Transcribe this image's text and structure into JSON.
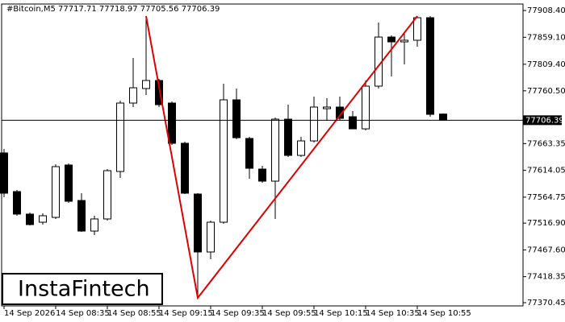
{
  "chart_data": {
    "type": "candlestick",
    "title": "#Bitcoin,M5  77717.71 77718.97 77705.56 77706.39",
    "categories": [
      "14 Sep 2026",
      null,
      null,
      null,
      "14 Sep 08:35",
      null,
      null,
      null,
      "14 Sep 08:55",
      null,
      null,
      null,
      "14 Sep 09:15",
      null,
      null,
      null,
      "14 Sep 09:35",
      null,
      null,
      null,
      "14 Sep 09:55",
      null,
      null,
      null,
      "14 Sep 10:15",
      null,
      null,
      null,
      "14 Sep 10:35",
      null,
      null,
      null,
      "14 Sep 10:55",
      null,
      null
    ],
    "open": [
      77646.1,
      77575.0,
      77533.5,
      77518.6,
      77527.5,
      77623.9,
      77558.6,
      77502.3,
      77524.6,
      77612.0,
      77737.97,
      77764.7,
      77779.5,
      77737.97,
      77663.9,
      77570.5,
      77463.8,
      77518.6,
      77743.9,
      77672.8,
      77616.4,
      77594.2,
      77708.3,
      77641.6,
      77668.3,
      77727.6,
      77730.6,
      77712.8,
      77690.5,
      77769.1,
      77859.5,
      77850.6,
      77853.6,
      77895.1,
      77717.71
    ],
    "high": [
      77653.5,
      77577.9,
      77536.4,
      77534.9,
      77625.3,
      77626.8,
      77572.0,
      77530.5,
      77616.4,
      77742.4,
      77821.0,
      77898.0,
      77782.4,
      77740.9,
      77666.8,
      77572.0,
      77521.6,
      77773.5,
      77764.7,
      77675.7,
      77622.4,
      77711.3,
      77735.0,
      77675.7,
      77749.8,
      77746.9,
      77749.8,
      77723.2,
      77779.5,
      77886.2,
      77862.5,
      77865.4,
      77898.0,
      77898.0,
      77718.97
    ],
    "low": [
      77564.6,
      77530.5,
      77512.7,
      77514.2,
      77524.6,
      77554.2,
      77500.8,
      77494.9,
      77521.6,
      77600.1,
      77730.6,
      77752.8,
      77730.6,
      77660.9,
      77570.5,
      77379.3,
      77450.5,
      77515.7,
      77671.3,
      77598.7,
      77591.3,
      77524.6,
      77638.7,
      77638.7,
      77665.4,
      77705.4,
      77706.8,
      77690.5,
      77687.6,
      77764.7,
      77786.9,
      77809.1,
      77841.7,
      77712.8,
      77705.56
    ],
    "close": [
      77572.0,
      77533.5,
      77514.2,
      77530.5,
      77620.9,
      77557.2,
      77502.3,
      77524.6,
      77613.5,
      77737.97,
      77766.1,
      77779.5,
      77735.0,
      77663.9,
      77572.0,
      77463.8,
      77518.6,
      77743.9,
      77674.2,
      77617.9,
      77594.2,
      77708.3,
      77641.6,
      77668.3,
      77730.6,
      77730.6,
      77709.8,
      77690.5,
      77769.1,
      77859.5,
      77850.6,
      77853.6,
      77895.1,
      77717.2,
      77706.39
    ],
    "last_price": {
      "value": 77706.39,
      "label": "77706.39"
    },
    "ylim": [
      77364.5,
      77920.3
    ],
    "yticks": [
      {
        "value": 77908.4,
        "label": "77908.40"
      },
      {
        "value": 77859.1,
        "label": "77859.10"
      },
      {
        "value": 77809.4,
        "label": "77809.40"
      },
      {
        "value": 77760.5,
        "label": "77760.50"
      },
      77663.35,
      77614.05,
      77564.75,
      {
        "value": 77516.9,
        "label": "77516.90"
      },
      {
        "value": 77467.6,
        "label": "77467.60"
      },
      77418.35,
      77370.45
    ],
    "up_color": "#ffffff",
    "down_color": "#000000",
    "pattern_color": "#e00000"
  },
  "watermark": "InstaFintech"
}
